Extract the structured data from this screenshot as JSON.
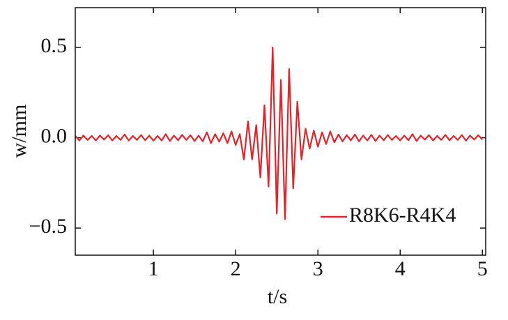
{
  "chart_data": {
    "type": "line",
    "xlabel": "t/s",
    "ylabel": "w/mm",
    "x": [
      0.05,
      0.1,
      0.15,
      0.2,
      0.25,
      0.3,
      0.35,
      0.4,
      0.45,
      0.5,
      0.55,
      0.6,
      0.65,
      0.7,
      0.75,
      0.8,
      0.85,
      0.9,
      0.95,
      1.0,
      1.05,
      1.1,
      1.15,
      1.2,
      1.25,
      1.3,
      1.35,
      1.4,
      1.45,
      1.5,
      1.55,
      1.6,
      1.65,
      1.7,
      1.75,
      1.8,
      1.85,
      1.9,
      1.95,
      2.0,
      2.05,
      2.1,
      2.15,
      2.2,
      2.25,
      2.3,
      2.35,
      2.4,
      2.45,
      2.5,
      2.55,
      2.6,
      2.65,
      2.7,
      2.75,
      2.8,
      2.85,
      2.9,
      2.95,
      3.0,
      3.05,
      3.1,
      3.15,
      3.2,
      3.25,
      3.3,
      3.35,
      3.4,
      3.45,
      3.5,
      3.55,
      3.6,
      3.65,
      3.7,
      3.75,
      3.8,
      3.85,
      3.9,
      3.95,
      4.0,
      4.05,
      4.1,
      4.15,
      4.2,
      4.25,
      4.3,
      4.35,
      4.4,
      4.45,
      4.5,
      4.55,
      4.6,
      4.65,
      4.7,
      4.75,
      4.8,
      4.85,
      4.9,
      4.95,
      5.0
    ],
    "series": [
      {
        "name": "R8K6-R4K4",
        "color": "#e0242b",
        "values": [
          0.01,
          -0.015,
          0.012,
          -0.012,
          0.01,
          -0.015,
          0.012,
          -0.01,
          0.014,
          -0.015,
          0.01,
          -0.012,
          0.018,
          -0.015,
          0.01,
          -0.012,
          0.015,
          -0.014,
          0.012,
          -0.016,
          0.01,
          -0.015,
          0.02,
          -0.018,
          0.012,
          -0.014,
          0.016,
          -0.012,
          0.014,
          -0.018,
          0.012,
          -0.02,
          0.03,
          -0.03,
          0.02,
          -0.022,
          0.025,
          -0.03,
          0.035,
          -0.04,
          0.02,
          -0.12,
          0.09,
          -0.12,
          0.07,
          -0.22,
          0.18,
          -0.27,
          0.5,
          -0.42,
          0.32,
          -0.45,
          0.38,
          -0.28,
          0.2,
          -0.12,
          0.05,
          -0.06,
          0.04,
          -0.05,
          0.03,
          -0.035,
          0.035,
          -0.025,
          0.018,
          -0.02,
          0.015,
          -0.015,
          0.018,
          -0.02,
          0.012,
          -0.015,
          0.016,
          -0.018,
          0.012,
          -0.014,
          0.015,
          -0.012,
          0.01,
          -0.015,
          0.012,
          -0.014,
          0.02,
          -0.018,
          0.012,
          -0.01,
          0.014,
          -0.015,
          0.01,
          -0.012,
          0.016,
          -0.014,
          0.01,
          -0.012,
          0.015,
          -0.016,
          0.012,
          -0.01,
          0.014,
          -0.01
        ]
      }
    ],
    "xlim": [
      0.05,
      5.04
    ],
    "ylim": [
      -0.65,
      0.72
    ],
    "xticks": [
      1,
      2,
      3,
      4,
      5
    ],
    "yticks": [
      {
        "value": -0.5,
        "label": "−0.5"
      },
      {
        "value": 0,
        "label": "0.0"
      },
      0.5
    ],
    "legend": "lower right"
  }
}
